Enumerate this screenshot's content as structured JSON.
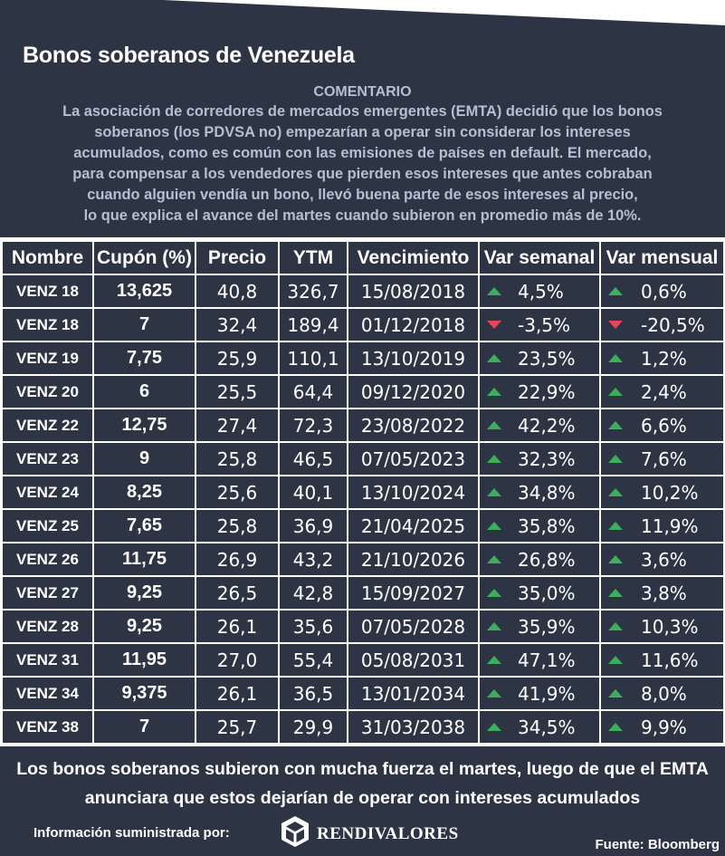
{
  "title": "Bonos soberanos de Venezuela",
  "comment": {
    "heading": "COMENTARIO",
    "lines": [
      "La asociación de corredores de mercados emergentes (EMTA) decidió que los bonos",
      "soberanos (los PDVSA no) empezarían a operar sin considerar los intereses",
      "acumulados, como es común con las emisiones de países en default. El mercado,",
      "para compensar a los vendedores que pierden esos intereses que antes cobraban",
      "cuando alguien vendía un bono, llevó buena parte de esos intereses al precio,",
      "lo que explica el avance del martes cuando subieron en promedio más de 10%."
    ]
  },
  "table": {
    "headers": [
      "Nombre",
      "Cupón (%)",
      "Precio",
      "YTM",
      "Vencimiento",
      "Var semanal",
      "Var mensual"
    ],
    "rows": [
      {
        "name": "VENZ 18",
        "coupon": "13,625",
        "price": "40,8",
        "ytm": "326,7",
        "maturity": "15/08/2018",
        "weekly": "4,5%",
        "weekly_dir": "up",
        "monthly": "0,6%",
        "monthly_dir": "up"
      },
      {
        "name": "VENZ 18",
        "coupon": "7",
        "price": "32,4",
        "ytm": "189,4",
        "maturity": "01/12/2018",
        "weekly": "-3,5%",
        "weekly_dir": "down",
        "monthly": "-20,5%",
        "monthly_dir": "down"
      },
      {
        "name": "VENZ 19",
        "coupon": "7,75",
        "price": "25,9",
        "ytm": "110,1",
        "maturity": "13/10/2019",
        "weekly": "23,5%",
        "weekly_dir": "up",
        "monthly": "1,2%",
        "monthly_dir": "up"
      },
      {
        "name": "VENZ 20",
        "coupon": "6",
        "price": "25,5",
        "ytm": "64,4",
        "maturity": "09/12/2020",
        "weekly": "22,9%",
        "weekly_dir": "up",
        "monthly": "2,4%",
        "monthly_dir": "up"
      },
      {
        "name": "VENZ 22",
        "coupon": "12,75",
        "price": "27,4",
        "ytm": "72,3",
        "maturity": "23/08/2022",
        "weekly": "42,2%",
        "weekly_dir": "up",
        "monthly": "6,6%",
        "monthly_dir": "up"
      },
      {
        "name": "VENZ 23",
        "coupon": "9",
        "price": "25,8",
        "ytm": "46,5",
        "maturity": "07/05/2023",
        "weekly": "32,3%",
        "weekly_dir": "up",
        "monthly": "7,6%",
        "monthly_dir": "up"
      },
      {
        "name": "VENZ 24",
        "coupon": "8,25",
        "price": "25,6",
        "ytm": "40,1",
        "maturity": "13/10/2024",
        "weekly": "34,8%",
        "weekly_dir": "up",
        "monthly": "10,2%",
        "monthly_dir": "up"
      },
      {
        "name": "VENZ 25",
        "coupon": "7,65",
        "price": "25,8",
        "ytm": "36,9",
        "maturity": "21/04/2025",
        "weekly": "35,8%",
        "weekly_dir": "up",
        "monthly": "11,9%",
        "monthly_dir": "up"
      },
      {
        "name": "VENZ 26",
        "coupon": "11,75",
        "price": "26,9",
        "ytm": "43,2",
        "maturity": "21/10/2026",
        "weekly": "26,8%",
        "weekly_dir": "up",
        "monthly": "3,6%",
        "monthly_dir": "up"
      },
      {
        "name": "VENZ 27",
        "coupon": "9,25",
        "price": "26,5",
        "ytm": "42,8",
        "maturity": "15/09/2027",
        "weekly": "35,0%",
        "weekly_dir": "up",
        "monthly": "3,8%",
        "monthly_dir": "up"
      },
      {
        "name": "VENZ 28",
        "coupon": "9,25",
        "price": "26,1",
        "ytm": "35,6",
        "maturity": "07/05/2028",
        "weekly": "35,9%",
        "weekly_dir": "up",
        "monthly": "10,3%",
        "monthly_dir": "up"
      },
      {
        "name": "VENZ 31",
        "coupon": "11,95",
        "price": "27,0",
        "ytm": "55,4",
        "maturity": "05/08/2031",
        "weekly": "47,1%",
        "weekly_dir": "up",
        "monthly": "11,6%",
        "monthly_dir": "up"
      },
      {
        "name": "VENZ 34",
        "coupon": "9,375",
        "price": "26,1",
        "ytm": "36,5",
        "maturity": "13/01/2034",
        "weekly": "41,9%",
        "weekly_dir": "up",
        "monthly": "8,0%",
        "monthly_dir": "up"
      },
      {
        "name": "VENZ 38",
        "coupon": "7",
        "price": "25,7",
        "ytm": "29,9",
        "maturity": "31/03/2038",
        "weekly": "34,5%",
        "weekly_dir": "up",
        "monthly": "9,9%",
        "monthly_dir": "up"
      }
    ]
  },
  "footer": {
    "line1": "Los bonos soberanos subieron con mucha fuerza el martes, luego de que el EMTA",
    "line2": "anunciara que estos dejarían de operar con intereses acumulados",
    "info_label": "Información suministrada por:",
    "logo_text": "RENDIVALORES",
    "source": "Fuente: Bloomberg"
  },
  "colors": {
    "panel": "#2d3545",
    "comment_text": "#b4bfd2",
    "up_arrow": "#3dae5b",
    "down_arrow": "#e8445a"
  },
  "icons": {
    "up": "triangle-up-icon",
    "down": "triangle-down-icon",
    "logo": "rendivalores-cube-logo"
  }
}
